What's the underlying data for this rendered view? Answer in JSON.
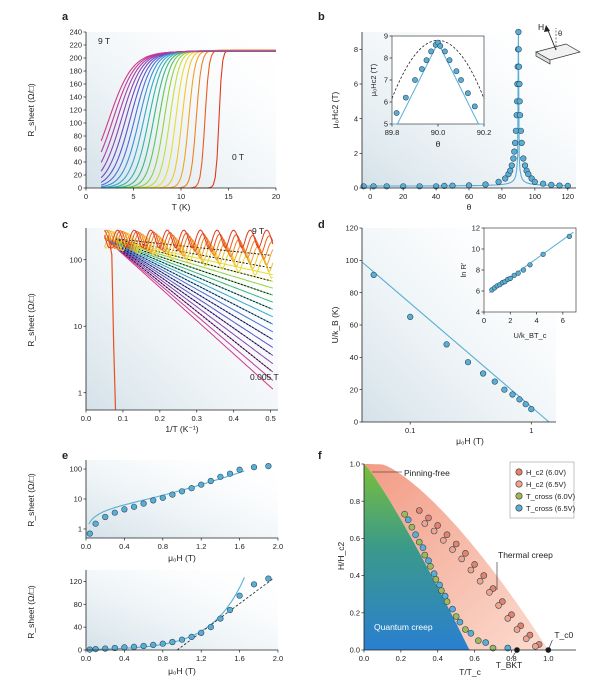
{
  "chart_data": [
    {
      "id": "a",
      "type": "line",
      "panel_label": "a",
      "xlabel": "T (K)",
      "ylabel": "R_sheet (Ω/□)",
      "xlim": [
        0,
        20
      ],
      "ylim": [
        0,
        240
      ],
      "xticks": [
        "0",
        "5",
        "10",
        "15",
        "20"
      ],
      "yticks": [
        "0",
        "20",
        "40",
        "60",
        "80",
        "100",
        "120",
        "140",
        "160",
        "180",
        "200",
        "220",
        "240"
      ],
      "annotations": [
        "9 T",
        "0 T"
      ],
      "colors": [
        "#e03a1e",
        "#ea5a20",
        "#f08024",
        "#f4a028",
        "#f6c32c",
        "#e9dc34",
        "#c7dc3a",
        "#95d040",
        "#5fc45a",
        "#3cb67f",
        "#33b3a7",
        "#34a9c9",
        "#3a8fda",
        "#4a6fd8",
        "#5a55cc",
        "#7048c0",
        "#8c42b6",
        "#a83eaa",
        "#c03a98",
        "#d33884"
      ],
      "series_info": {
        "count": 20,
        "field_min_T": 0,
        "field_max_T": 9,
        "r_normal": 210,
        "tc_0T": 14.0,
        "tc_9T": 2.4
      }
    },
    {
      "id": "b",
      "type": "scatter",
      "panel_label": "b",
      "xlabel": "θ",
      "ylabel": "μ₀Hc2 (T)",
      "xlim": [
        -5,
        125
      ],
      "ylim": [
        0,
        9
      ],
      "xticks": [
        "0",
        "20",
        "40",
        "60",
        "80",
        "100",
        "120"
      ],
      "yticks": [
        "0",
        "2",
        "4",
        "6",
        "8"
      ],
      "diagram_labels": [
        "H",
        "θ"
      ],
      "x": [
        -4,
        2,
        10,
        20,
        30,
        40,
        45,
        50,
        60,
        70,
        78,
        82,
        84,
        85,
        86,
        87,
        87.5,
        88,
        88.5,
        89,
        89.2,
        89.4,
        89.6,
        89.8,
        90,
        90.2,
        90.4,
        90.6,
        90.8,
        91,
        91.5,
        92,
        93,
        94,
        95,
        96,
        98,
        100,
        105,
        110,
        115,
        120
      ],
      "y": [
        0.1,
        0.1,
        0.1,
        0.1,
        0.1,
        0.1,
        0.12,
        0.13,
        0.15,
        0.2,
        0.35,
        0.55,
        0.8,
        1.0,
        1.3,
        1.7,
        2.1,
        2.6,
        3.3,
        4.2,
        5.0,
        6.0,
        7.0,
        8.0,
        9.0,
        8.0,
        7.0,
        6.0,
        5.0,
        4.2,
        3.3,
        2.6,
        1.7,
        1.3,
        1.0,
        0.8,
        0.55,
        0.35,
        0.25,
        0.18,
        0.14,
        0.12
      ],
      "inset": {
        "xlabel": "θ",
        "ylabel": "μ₀Hc2 (T)",
        "xlim": [
          89.8,
          90.2
        ],
        "ylim": [
          5,
          9
        ],
        "xticks": [
          "89.8",
          "90.0",
          "90.2"
        ],
        "yticks": [
          "5",
          "6",
          "7",
          "8",
          "9"
        ],
        "x": [
          89.82,
          89.86,
          89.9,
          89.93,
          89.95,
          89.97,
          89.99,
          90.0,
          90.01,
          90.03,
          90.05,
          90.08,
          90.1,
          90.13,
          90.16
        ],
        "y": [
          5.5,
          6.2,
          7.0,
          7.5,
          7.9,
          8.3,
          8.6,
          8.7,
          8.55,
          8.3,
          7.9,
          7.4,
          7.0,
          6.4,
          5.8
        ]
      }
    },
    {
      "id": "c",
      "type": "line",
      "panel_label": "c",
      "xlabel": "1/T (K⁻¹)",
      "ylabel": "R_sheet (Ω/□)",
      "xlim": [
        0,
        0.52
      ],
      "ylim_log": [
        0.55,
        300
      ],
      "log_y": true,
      "xticks": [
        "0.0",
        "0.1",
        "0.2",
        "0.3",
        "0.4",
        "0.5"
      ],
      "yticks": [
        "1",
        "10",
        "100"
      ],
      "annotations": [
        "9 T",
        "0.005 T"
      ],
      "series_info": {
        "count": 22,
        "note": "dotted black Arrhenius fits"
      }
    },
    {
      "id": "d",
      "type": "scatter",
      "panel_label": "d",
      "xlabel": "μ₀H (T)",
      "ylabel": "U/k_B (K)",
      "log_x": true,
      "xlim_log": [
        0.04,
        1.6
      ],
      "ylim": [
        0,
        120
      ],
      "xticks": [
        "0.1",
        "1"
      ],
      "yticks": [
        "0",
        "20",
        "40",
        "60",
        "80",
        "100",
        "120"
      ],
      "x": [
        0.05,
        0.1,
        0.2,
        0.3,
        0.4,
        0.5,
        0.6,
        0.7,
        0.8,
        0.9,
        1.0
      ],
      "y": [
        91,
        65,
        48,
        37,
        30,
        25,
        20,
        17,
        14,
        11,
        8
      ],
      "fit_line": {
        "x": [
          0.04,
          1.4
        ],
        "y": [
          99,
          0
        ]
      },
      "inset": {
        "xlabel": "U/k_BT_c",
        "ylabel": "ln R'",
        "xlim": [
          0,
          7
        ],
        "ylim": [
          4,
          12
        ],
        "xticks": [
          "0",
          "2",
          "4",
          "6"
        ],
        "yticks": [
          "4",
          "6",
          "8",
          "10",
          "12"
        ],
        "x": [
          0.6,
          0.8,
          1.0,
          1.2,
          1.4,
          1.6,
          1.8,
          2.0,
          2.3,
          2.6,
          3.0,
          3.5,
          4.5,
          6.5
        ],
        "y": [
          6.1,
          6.3,
          6.5,
          6.6,
          6.8,
          6.9,
          7.1,
          7.2,
          7.5,
          7.7,
          8.0,
          8.5,
          9.5,
          11.2
        ]
      }
    },
    {
      "id": "e_top",
      "type": "scatter",
      "panel_label": "e",
      "xlabel": "μ₀H (T)",
      "ylabel": "R_sheet (Ω/□)",
      "log_y": true,
      "xlim": [
        0,
        2.0
      ],
      "ylim_log": [
        0.5,
        200
      ],
      "xticks": [
        "0.0",
        "0.4",
        "0.8",
        "1.2",
        "1.6",
        "2.0"
      ],
      "yticks": [
        "1",
        "10",
        "100"
      ],
      "x": [
        0.04,
        0.1,
        0.2,
        0.3,
        0.4,
        0.5,
        0.6,
        0.7,
        0.8,
        0.9,
        1.0,
        1.1,
        1.2,
        1.3,
        1.4,
        1.5,
        1.6,
        1.75,
        1.9
      ],
      "y": [
        0.7,
        1.5,
        2.5,
        3.5,
        4.5,
        5.5,
        7,
        9,
        11,
        14,
        18,
        23,
        30,
        40,
        55,
        70,
        95,
        115,
        125
      ]
    },
    {
      "id": "e_bottom",
      "type": "scatter",
      "xlabel": "μ₀H (T)",
      "ylabel": "R_sheet (Ω/□)",
      "xlim": [
        0,
        2.0
      ],
      "ylim": [
        0,
        140
      ],
      "xticks": [
        "0.0",
        "0.4",
        "0.8",
        "1.2",
        "1.6",
        "2.0"
      ],
      "yticks": [
        "0",
        "40",
        "80",
        "120"
      ],
      "x": [
        0.04,
        0.1,
        0.2,
        0.3,
        0.4,
        0.5,
        0.6,
        0.7,
        0.8,
        0.9,
        1.0,
        1.1,
        1.2,
        1.3,
        1.4,
        1.5,
        1.6,
        1.75,
        1.9
      ],
      "y": [
        0.7,
        1.5,
        2.5,
        3.5,
        4.5,
        5.5,
        7,
        9,
        11,
        14,
        18,
        23,
        30,
        40,
        55,
        70,
        95,
        115,
        125
      ]
    },
    {
      "id": "f",
      "type": "scatter",
      "panel_label": "f",
      "xlabel": "T/T_c",
      "ylabel": "H/H_c2",
      "xlim": [
        0,
        1.15
      ],
      "ylim": [
        0,
        1.0
      ],
      "xticks": [
        "0.0",
        "0.2",
        "0.4",
        "0.6",
        "0.8",
        "1.0"
      ],
      "yticks": [
        "0.0",
        "0.2",
        "0.4",
        "0.6",
        "0.8",
        "1.0"
      ],
      "region_labels": [
        "Pinning-free",
        "Thermal creep",
        "Quantum creep"
      ],
      "markers": [
        "T_BKT",
        "T_c0"
      ],
      "legend_position": "top-right",
      "legend": [
        {
          "label": "H_c2 (6.0V)",
          "color": "#e8806a"
        },
        {
          "label": "H_c2 (6.5V)",
          "color": "#f3a28c"
        },
        {
          "label": "T_cross (6.0V)",
          "color": "#9fb85a"
        },
        {
          "label": "T_cross (6.5V)",
          "color": "#5aaed6"
        }
      ],
      "hc2_60": {
        "x": [
          0.3,
          0.35,
          0.4,
          0.45,
          0.5,
          0.55,
          0.6,
          0.65,
          0.7,
          0.75,
          0.8,
          0.85,
          0.9,
          0.95
        ],
        "y": [
          0.75,
          0.71,
          0.67,
          0.62,
          0.57,
          0.52,
          0.46,
          0.4,
          0.33,
          0.26,
          0.19,
          0.13,
          0.08,
          0.03
        ]
      },
      "hc2_65": {
        "x": [
          0.33,
          0.38,
          0.43,
          0.48,
          0.53,
          0.58,
          0.63,
          0.68,
          0.73,
          0.78,
          0.83,
          0.88,
          0.93
        ],
        "y": [
          0.68,
          0.64,
          0.59,
          0.54,
          0.49,
          0.43,
          0.37,
          0.31,
          0.24,
          0.17,
          0.11,
          0.06,
          0.02
        ]
      },
      "tcross_60": {
        "x": [
          0.22,
          0.26,
          0.3,
          0.33,
          0.36,
          0.39,
          0.42,
          0.45,
          0.5,
          0.55,
          0.62,
          0.7
        ],
        "y": [
          0.73,
          0.66,
          0.58,
          0.51,
          0.45,
          0.38,
          0.32,
          0.26,
          0.18,
          0.11,
          0.05,
          0.01
        ]
      },
      "tcross_65": {
        "x": [
          0.24,
          0.28,
          0.32,
          0.35,
          0.38,
          0.41,
          0.44,
          0.48,
          0.52,
          0.58,
          0.66,
          0.78
        ],
        "y": [
          0.7,
          0.62,
          0.55,
          0.48,
          0.41,
          0.35,
          0.29,
          0.22,
          0.15,
          0.09,
          0.04,
          0.01
        ]
      },
      "tbkt_x": 0.83,
      "tc0_x": 1.0
    }
  ]
}
